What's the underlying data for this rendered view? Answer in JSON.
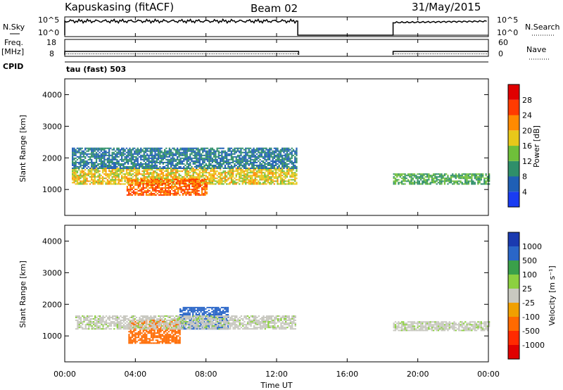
{
  "header": {
    "station": "Kapuskasing (fitACF)",
    "beam": "Beam 02",
    "date": "31/May/2015"
  },
  "sky_panel": {
    "left_label": "N.Sky",
    "right_label": "N.Search",
    "left_ticks": [
      "10^5",
      "10^0"
    ],
    "right_ticks": [
      "10^5",
      "10^0"
    ]
  },
  "freq_panel": {
    "left_label_top": "Freq.",
    "left_label_bottom": "[MHz]",
    "right_label": "Nave",
    "left_ticks": [
      "18",
      "8"
    ],
    "right_ticks": [
      "60",
      "0"
    ]
  },
  "cpid_label": "CPID",
  "cpid_value": "tau (fast) 503",
  "power_panel": {
    "ylabel": "Slant Range [km]",
    "yticks": [
      "1000",
      "2000",
      "3000",
      "4000"
    ],
    "colorbar_label": "Power [dB]",
    "colorbar_ticks": [
      "4",
      "8",
      "12",
      "16",
      "20",
      "24",
      "28"
    ]
  },
  "velocity_panel": {
    "ylabel": "Slant Range [km]",
    "yticks": [
      "1000",
      "2000",
      "3000",
      "4000"
    ],
    "colorbar_label": "Velocity [m s⁻¹]",
    "colorbar_ticks": [
      "1000",
      "500",
      "100",
      "25",
      "-25",
      "-100",
      "-500",
      "-1000"
    ]
  },
  "xaxis": {
    "label": "Time UT",
    "ticks": [
      "00:00",
      "04:00",
      "08:00",
      "12:00",
      "16:00",
      "20:00",
      "00:00"
    ]
  },
  "colors": {
    "power_scale": [
      "#1a3cf2",
      "#1f5fb5",
      "#2f8f6a",
      "#6fbf3a",
      "#e8c81a",
      "#ff8a00",
      "#ff3b00",
      "#e00000"
    ],
    "velocity_scale": [
      "#1a3ab0",
      "#2a66c8",
      "#3aa04a",
      "#8cd040",
      "#c8c8c0",
      "#f0a000",
      "#ff6a00",
      "#ff2a00",
      "#e00000"
    ]
  },
  "chart_data": {
    "type": "heatmap",
    "x_unit": "hours UT",
    "x_range": [
      0,
      24
    ],
    "y_range_km": [
      180,
      4500
    ],
    "data_gap_hours": [
      13.2,
      18.6
    ],
    "power_echo_bands": [
      {
        "t0": 0.4,
        "t1": 13.1,
        "r0": 1150,
        "r1": 1650,
        "level_dB": 18
      },
      {
        "t0": 0.4,
        "t1": 13.1,
        "r0": 1650,
        "r1": 2300,
        "level_dB": 8
      },
      {
        "t0": 3.5,
        "t1": 8.0,
        "r0": 800,
        "r1": 1300,
        "level_dB": 24
      },
      {
        "t0": 18.6,
        "t1": 24.0,
        "r0": 1150,
        "r1": 1500,
        "level_dB": 12
      }
    ],
    "velocity_echo_bands": [
      {
        "t0": 3.6,
        "t1": 6.5,
        "r0": 750,
        "r1": 1500,
        "velocity": -300
      },
      {
        "t0": 6.5,
        "t1": 9.2,
        "r0": 1200,
        "r1": 1900,
        "velocity": 300
      },
      {
        "t0": 0.6,
        "t1": 13.1,
        "r0": 1200,
        "r1": 1650,
        "velocity": 0
      },
      {
        "t0": 18.6,
        "t1": 24.0,
        "r0": 1150,
        "r1": 1450,
        "velocity": 0
      }
    ]
  }
}
